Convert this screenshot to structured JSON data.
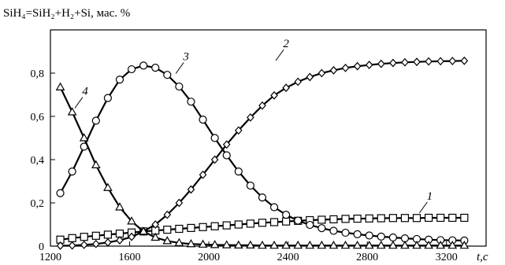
{
  "chart_data": {
    "type": "line",
    "title": "SiH₄=SiH₂+H₂+Si, мас. %",
    "xlabel": "t,с",
    "ylabel": "",
    "xlim": [
      1200,
      3400
    ],
    "ylim": [
      0,
      1.0
    ],
    "x_ticks": [
      1200,
      1600,
      2000,
      2400,
      2800,
      3200
    ],
    "x_tick_labels": [
      "1200",
      "1600",
      "2000",
      "2400",
      "2800",
      "3200"
    ],
    "y_ticks": [
      0,
      0.2,
      0.4,
      0.6,
      0.8
    ],
    "y_tick_labels": [
      "0",
      "0,2",
      "0,4",
      "0,6",
      "0,8"
    ],
    "grid": false,
    "series": [
      {
        "name": "1",
        "marker": "square",
        "x": [
          1250,
          1310,
          1370,
          1430,
          1490,
          1550,
          1610,
          1670,
          1730,
          1790,
          1850,
          1910,
          1970,
          2030,
          2090,
          2150,
          2210,
          2270,
          2330,
          2390,
          2450,
          2510,
          2570,
          2630,
          2690,
          2750,
          2810,
          2870,
          2930,
          2990,
          3050,
          3110,
          3170,
          3230,
          3290
        ],
        "values": [
          0.03,
          0.037,
          0.043,
          0.048,
          0.053,
          0.058,
          0.063,
          0.068,
          0.072,
          0.076,
          0.08,
          0.084,
          0.088,
          0.092,
          0.096,
          0.1,
          0.104,
          0.108,
          0.111,
          0.114,
          0.117,
          0.12,
          0.122,
          0.124,
          0.126,
          0.127,
          0.128,
          0.129,
          0.13,
          0.13,
          0.13,
          0.131,
          0.131,
          0.131,
          0.131
        ]
      },
      {
        "name": "2",
        "marker": "diamond",
        "x": [
          1250,
          1310,
          1370,
          1430,
          1490,
          1550,
          1610,
          1670,
          1730,
          1790,
          1850,
          1910,
          1970,
          2030,
          2090,
          2150,
          2210,
          2270,
          2330,
          2390,
          2450,
          2510,
          2570,
          2630,
          2690,
          2750,
          2810,
          2870,
          2930,
          2990,
          3050,
          3110,
          3170,
          3230,
          3290
        ],
        "values": [
          0.002,
          0.003,
          0.006,
          0.01,
          0.017,
          0.027,
          0.043,
          0.068,
          0.1,
          0.145,
          0.2,
          0.262,
          0.33,
          0.4,
          0.47,
          0.535,
          0.595,
          0.65,
          0.697,
          0.732,
          0.76,
          0.782,
          0.8,
          0.813,
          0.824,
          0.832,
          0.838,
          0.843,
          0.847,
          0.85,
          0.852,
          0.854,
          0.855,
          0.856,
          0.857
        ]
      },
      {
        "name": "3",
        "marker": "circle",
        "x": [
          1250,
          1310,
          1370,
          1430,
          1490,
          1550,
          1610,
          1670,
          1730,
          1790,
          1850,
          1910,
          1970,
          2030,
          2090,
          2150,
          2210,
          2270,
          2330,
          2390,
          2450,
          2510,
          2570,
          2630,
          2690,
          2750,
          2810,
          2870,
          2930,
          2990,
          3050,
          3110,
          3170,
          3230,
          3290
        ],
        "values": [
          0.245,
          0.345,
          0.46,
          0.58,
          0.685,
          0.77,
          0.818,
          0.835,
          0.825,
          0.792,
          0.738,
          0.668,
          0.585,
          0.5,
          0.42,
          0.345,
          0.28,
          0.225,
          0.18,
          0.145,
          0.118,
          0.098,
          0.083,
          0.071,
          0.062,
          0.055,
          0.049,
          0.044,
          0.04,
          0.036,
          0.033,
          0.03,
          0.028,
          0.027,
          0.026
        ]
      },
      {
        "name": "4",
        "marker": "triangle",
        "x": [
          1250,
          1310,
          1370,
          1430,
          1490,
          1550,
          1610,
          1670,
          1730,
          1790,
          1850,
          1910,
          1970,
          2030,
          2090,
          2150,
          2210,
          2270,
          2330,
          2390,
          2450,
          2510,
          2570,
          2630,
          2690,
          2750,
          2810,
          2870,
          2930,
          2990,
          3050,
          3110,
          3170,
          3230,
          3290
        ],
        "values": [
          0.735,
          0.62,
          0.5,
          0.375,
          0.27,
          0.18,
          0.115,
          0.068,
          0.04,
          0.024,
          0.015,
          0.01,
          0.008,
          0.006,
          0.005,
          0.004,
          0.004,
          0.003,
          0.003,
          0.003,
          0.003,
          0.003,
          0.003,
          0.003,
          0.003,
          0.003,
          0.003,
          0.003,
          0.003,
          0.003,
          0.003,
          0.003,
          0.003,
          0.003,
          0.003
        ]
      }
    ],
    "curve_labels": [
      {
        "text": "1",
        "x": 3115,
        "y": 0.215
      },
      {
        "text": "2",
        "x": 2390,
        "y": 0.92
      },
      {
        "text": "3",
        "x": 1885,
        "y": 0.86
      },
      {
        "text": "4",
        "x": 1375,
        "y": 0.7
      }
    ]
  }
}
